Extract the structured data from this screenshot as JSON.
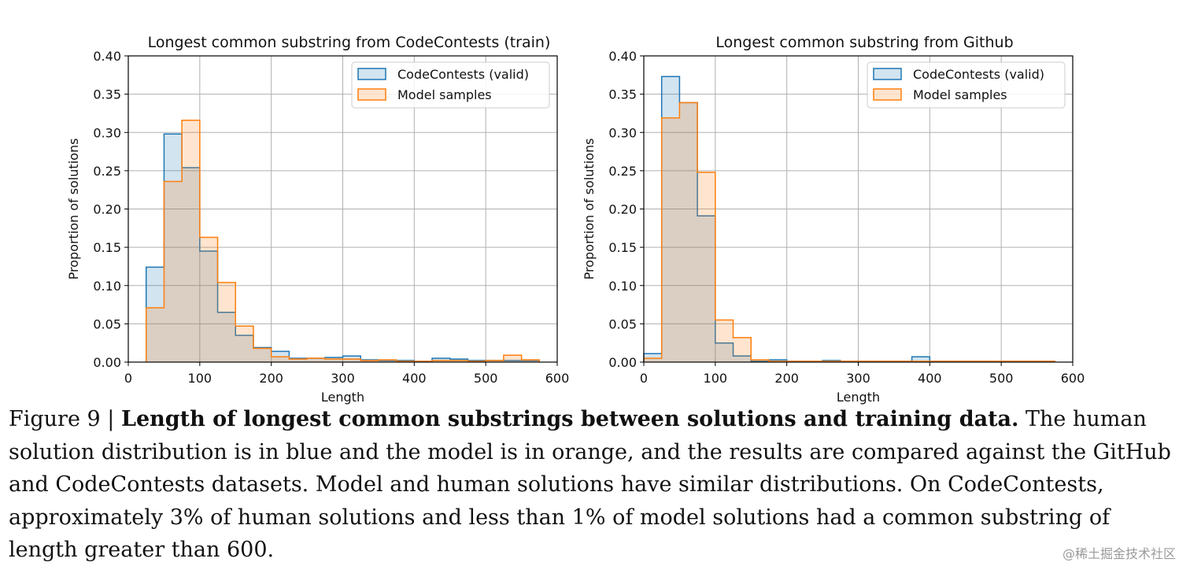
{
  "chart_data": [
    {
      "type": "histogram",
      "title": "Longest common substring from CodeContests (train)",
      "xlabel": "Length",
      "ylabel": "Proportion of solutions",
      "xlim": [
        0,
        600
      ],
      "ylim": [
        0,
        0.4
      ],
      "xticks": [
        0,
        100,
        200,
        300,
        400,
        500,
        600
      ],
      "yticks": [
        0.0,
        0.05,
        0.1,
        0.15,
        0.2,
        0.25,
        0.3,
        0.35,
        0.4
      ],
      "xtick_labels": [
        "0",
        "100",
        "200",
        "300",
        "400",
        "500",
        "600"
      ],
      "ytick_labels": [
        "0.00",
        "0.05",
        "0.10",
        "0.15",
        "0.20",
        "0.25",
        "0.30",
        "0.35",
        "0.40"
      ],
      "grid": true,
      "legend_position": "upper right",
      "bin_edges": [
        25,
        50,
        75,
        100,
        125,
        150,
        175,
        200,
        225,
        250,
        275,
        300,
        325,
        350,
        375,
        400,
        425,
        450,
        475,
        500,
        525,
        550,
        575
      ],
      "series": [
        {
          "name": "CodeContests (valid)",
          "color": "#1f77b4",
          "values": [
            0.124,
            0.298,
            0.254,
            0.145,
            0.065,
            0.035,
            0.019,
            0.014,
            0.005,
            0.005,
            0.006,
            0.008,
            0.003,
            0.002,
            0.002,
            0.001,
            0.005,
            0.004,
            0.002,
            0.002,
            0.002,
            0.002
          ]
        },
        {
          "name": "Model samples",
          "color": "#ff7f0e",
          "values": [
            0.071,
            0.236,
            0.316,
            0.163,
            0.104,
            0.047,
            0.018,
            0.007,
            0.004,
            0.005,
            0.004,
            0.004,
            0.002,
            0.003,
            0.001,
            0.001,
            0.002,
            0.002,
            0.001,
            0.002,
            0.009,
            0.003
          ]
        }
      ]
    },
    {
      "type": "histogram",
      "title": "Longest common substring from Github",
      "xlabel": "Length",
      "ylabel": "Proportion of solutions",
      "xlim": [
        0,
        600
      ],
      "ylim": [
        0,
        0.4
      ],
      "xticks": [
        0,
        100,
        200,
        300,
        400,
        500,
        600
      ],
      "yticks": [
        0.0,
        0.05,
        0.1,
        0.15,
        0.2,
        0.25,
        0.3,
        0.35,
        0.4
      ],
      "xtick_labels": [
        "0",
        "100",
        "200",
        "300",
        "400",
        "500",
        "600"
      ],
      "ytick_labels": [
        "0.00",
        "0.05",
        "0.10",
        "0.15",
        "0.20",
        "0.25",
        "0.30",
        "0.35",
        "0.40"
      ],
      "grid": true,
      "legend_position": "upper right",
      "bin_edges": [
        0,
        25,
        50,
        75,
        100,
        125,
        150,
        175,
        200,
        225,
        250,
        275,
        300,
        325,
        350,
        375,
        400,
        425,
        450,
        475,
        500,
        525,
        550,
        575
      ],
      "series": [
        {
          "name": "CodeContests (valid)",
          "color": "#1f77b4",
          "values": [
            0.011,
            0.373,
            0.339,
            0.191,
            0.025,
            0.008,
            0.001,
            0.003,
            0.001,
            0.001,
            0.002,
            0.001,
            0.001,
            0.001,
            0.001,
            0.007,
            0.001,
            0.001,
            0.001,
            0.001,
            0.001,
            0.001,
            0.001
          ]
        },
        {
          "name": "Model samples",
          "color": "#ff7f0e",
          "values": [
            0.005,
            0.319,
            0.339,
            0.248,
            0.055,
            0.032,
            0.003,
            0.001,
            0.001,
            0.001,
            0.001,
            0.001,
            0.001,
            0.001,
            0.001,
            0.001,
            0.001,
            0.001,
            0.001,
            0.001,
            0.001,
            0.001,
            0.001
          ]
        }
      ]
    }
  ],
  "caption": {
    "label": "Figure 9",
    "separator": "|",
    "bold": "Length of longest common substrings between solutions and training data.",
    "text": "The human solution distribution is in blue and the model is in orange, and the results are compared against the GitHub and CodeContests datasets. Model and human solutions have similar distributions. On CodeContests, approximately 3% of human solutions and less than 1% of model solutions had a common substring of length greater than 600."
  },
  "watermark": "@稀土掘金技术社区"
}
